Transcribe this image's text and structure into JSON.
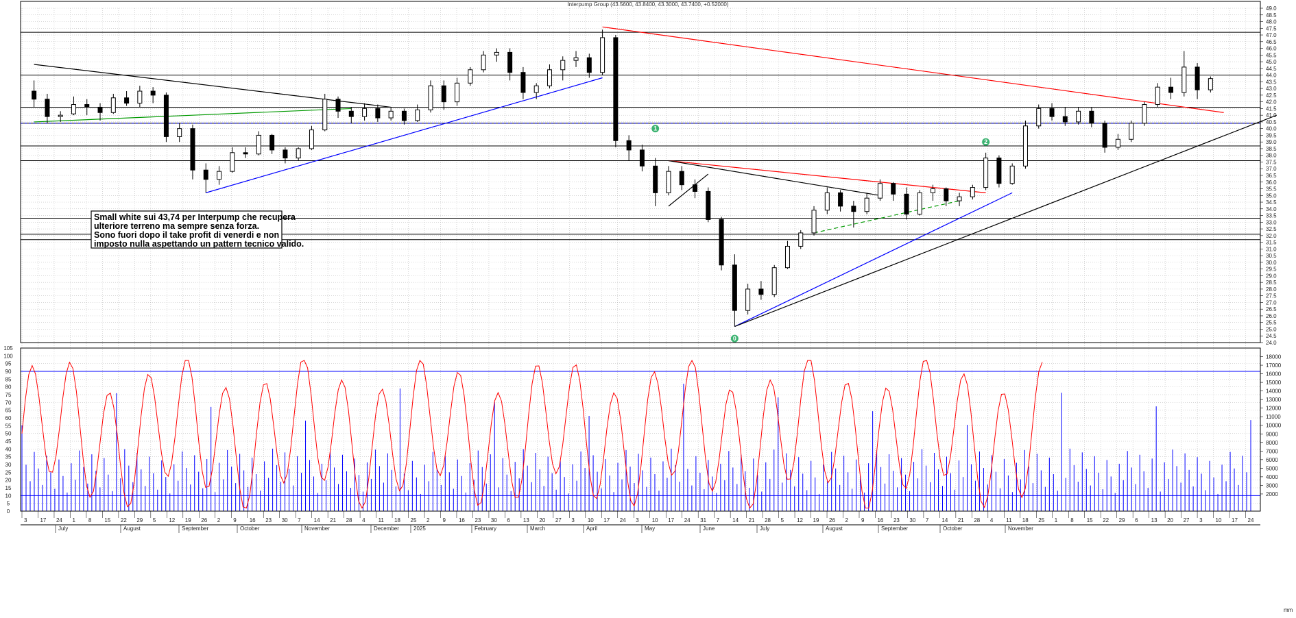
{
  "chart_data": {
    "type": "candlestick",
    "title": "Interpump Group (43.5600, 43.8400, 43.3000, 43.7400, +0.52000)",
    "price_axis": {
      "range": [
        24.0,
        49.0
      ],
      "tick_labels": [
        "24.0",
        "24.5",
        "25.0",
        "25.5",
        "26.0",
        "26.5",
        "27.0",
        "27.5",
        "28.0",
        "28.5",
        "29.0",
        "29.5",
        "30.0",
        "30.5",
        "31.0",
        "31.5",
        "32.0",
        "32.5",
        "33.0",
        "33.5",
        "34.0",
        "34.5",
        "35.0",
        "35.5",
        "36.0",
        "36.5",
        "37.0",
        "37.5",
        "38.0",
        "38.5",
        "39.0",
        "39.5",
        "40.0",
        "40.5",
        "41.0",
        "41.5",
        "42.0",
        "42.5",
        "43.0",
        "43.5",
        "44.0",
        "44.5",
        "45.0",
        "45.5",
        "46.0",
        "46.5",
        "47.0",
        "47.5",
        "48.0",
        "48.5",
        "49.0"
      ]
    },
    "oscillator_axis": {
      "range": [
        0,
        105
      ],
      "tick_labels": [
        "0",
        "5",
        "10",
        "15",
        "20",
        "25",
        "30",
        "35",
        "40",
        "45",
        "50",
        "55",
        "60",
        "65",
        "70",
        "75",
        "80",
        "85",
        "90",
        "95",
        "100",
        "105"
      ],
      "levels": [
        10,
        90
      ]
    },
    "volume_axis": {
      "range": [
        0,
        19000
      ],
      "tick_labels": [
        "2000",
        "3000",
        "4000",
        "5000",
        "6000",
        "7000",
        "8000",
        "9000",
        "10000",
        "11000",
        "12000",
        "13000",
        "14000",
        "15000",
        "16000",
        "17000",
        "18000"
      ]
    },
    "x_axis": {
      "day_ticks": [
        "3",
        "17",
        "24",
        "1",
        "8",
        "15",
        "22",
        "29",
        "5",
        "12",
        "19",
        "26",
        "2",
        "9",
        "16",
        "23",
        "30",
        "7",
        "14",
        "21",
        "28",
        "4",
        "11",
        "18",
        "25",
        "2",
        "9",
        "16",
        "23",
        "30",
        "6",
        "13",
        "20",
        "27",
        "3",
        "10",
        "17",
        "24",
        "3",
        "10",
        "17",
        "24",
        "31",
        "7",
        "14",
        "21",
        "28",
        "5",
        "12",
        "19",
        "26",
        "2",
        "9",
        "16",
        "23",
        "30",
        "7",
        "14",
        "21",
        "28",
        "4",
        "11",
        "18",
        "25",
        "1",
        "8",
        "15",
        "22",
        "29",
        "6",
        "13",
        "20",
        "27",
        "3",
        "10",
        "17",
        "24"
      ],
      "month_labels": [
        "July",
        "August",
        "September",
        "October",
        "November",
        "December",
        "2025",
        "February",
        "March",
        "April",
        "May",
        "June",
        "July",
        "August",
        "September",
        "October",
        "November"
      ]
    },
    "candles_ohlc_sample": [
      [
        42.8,
        43.6,
        41.6,
        42.2
      ],
      [
        42.2,
        42.6,
        40.4,
        40.9
      ],
      [
        40.9,
        41.3,
        40.5,
        41.0
      ],
      [
        41.1,
        42.4,
        41.0,
        41.8
      ],
      [
        41.8,
        42.2,
        41.0,
        41.6
      ],
      [
        41.6,
        41.9,
        40.6,
        41.2
      ],
      [
        41.2,
        42.6,
        41.1,
        42.3
      ],
      [
        42.3,
        42.8,
        41.7,
        41.9
      ],
      [
        41.9,
        43.2,
        41.6,
        42.8
      ],
      [
        42.8,
        43.1,
        41.9,
        42.5
      ],
      [
        42.5,
        42.7,
        39.0,
        39.4
      ],
      [
        39.4,
        40.4,
        39.0,
        40.0
      ],
      [
        40.0,
        40.3,
        36.2,
        36.9
      ],
      [
        36.9,
        37.4,
        35.2,
        36.2
      ],
      [
        36.2,
        37.2,
        35.8,
        36.8
      ],
      [
        36.8,
        38.6,
        36.7,
        38.2
      ],
      [
        38.2,
        38.6,
        37.8,
        38.1
      ],
      [
        38.1,
        39.8,
        38.0,
        39.5
      ],
      [
        39.5,
        39.6,
        38.1,
        38.4
      ],
      [
        38.4,
        38.6,
        37.4,
        37.8
      ],
      [
        37.8,
        38.6,
        37.6,
        38.5
      ],
      [
        38.5,
        40.2,
        38.4,
        39.9
      ],
      [
        39.9,
        42.6,
        39.8,
        42.2
      ],
      [
        42.2,
        42.4,
        40.8,
        41.3
      ],
      [
        41.3,
        41.6,
        40.4,
        40.9
      ],
      [
        40.9,
        41.9,
        40.6,
        41.5
      ],
      [
        41.5,
        41.8,
        40.5,
        40.8
      ],
      [
        40.8,
        41.6,
        40.6,
        41.3
      ],
      [
        41.3,
        41.5,
        40.3,
        40.6
      ],
      [
        40.6,
        41.8,
        40.5,
        41.4
      ],
      [
        41.4,
        43.6,
        41.2,
        43.2
      ],
      [
        43.2,
        43.6,
        41.4,
        42.0
      ],
      [
        42.0,
        43.8,
        41.7,
        43.4
      ],
      [
        43.4,
        44.6,
        43.2,
        44.4
      ],
      [
        44.4,
        45.8,
        44.2,
        45.5
      ],
      [
        45.5,
        46.0,
        45.0,
        45.7
      ],
      [
        45.7,
        46.0,
        43.6,
        44.2
      ],
      [
        44.2,
        44.6,
        42.2,
        42.7
      ],
      [
        42.7,
        43.4,
        42.2,
        43.2
      ],
      [
        43.2,
        44.8,
        43.0,
        44.4
      ],
      [
        44.4,
        45.4,
        43.6,
        45.1
      ],
      [
        45.1,
        45.8,
        44.6,
        45.3
      ],
      [
        45.3,
        45.6,
        43.8,
        44.2
      ],
      [
        44.2,
        47.4,
        44.0,
        46.8
      ],
      [
        46.8,
        47.0,
        38.6,
        39.1
      ],
      [
        39.1,
        39.5,
        37.6,
        38.4
      ],
      [
        38.4,
        38.8,
        36.8,
        37.2
      ],
      [
        37.2,
        37.8,
        34.2,
        35.2
      ],
      [
        35.2,
        37.2,
        35.0,
        36.8
      ],
      [
        36.8,
        37.2,
        35.4,
        35.8
      ],
      [
        35.8,
        36.2,
        34.8,
        35.3
      ],
      [
        35.3,
        35.6,
        33.0,
        33.2
      ],
      [
        33.2,
        33.4,
        29.4,
        29.8
      ],
      [
        29.8,
        30.6,
        25.2,
        26.4
      ],
      [
        26.4,
        28.4,
        26.1,
        28.0
      ],
      [
        28.0,
        28.6,
        27.2,
        27.6
      ],
      [
        27.6,
        29.8,
        27.4,
        29.6
      ],
      [
        29.6,
        31.6,
        29.5,
        31.2
      ],
      [
        31.2,
        32.4,
        31.0,
        32.2
      ],
      [
        32.2,
        34.2,
        32.0,
        33.9
      ],
      [
        33.9,
        35.6,
        33.6,
        35.2
      ],
      [
        35.2,
        35.4,
        33.8,
        34.2
      ],
      [
        34.2,
        34.6,
        32.6,
        33.8
      ],
      [
        33.8,
        35.2,
        33.6,
        34.8
      ],
      [
        34.8,
        36.2,
        34.6,
        35.9
      ],
      [
        35.9,
        36.0,
        34.6,
        35.1
      ],
      [
        35.1,
        35.6,
        33.2,
        33.6
      ],
      [
        33.6,
        35.4,
        33.5,
        35.2
      ],
      [
        35.2,
        35.8,
        34.6,
        35.5
      ],
      [
        35.5,
        35.6,
        34.2,
        34.6
      ],
      [
        34.6,
        35.2,
        34.2,
        34.9
      ],
      [
        34.9,
        35.8,
        34.7,
        35.6
      ],
      [
        35.6,
        38.2,
        35.4,
        37.8
      ],
      [
        37.8,
        38.0,
        35.6,
        35.9
      ],
      [
        35.9,
        37.4,
        35.8,
        37.2
      ],
      [
        37.2,
        40.6,
        37.0,
        40.2
      ],
      [
        40.2,
        41.8,
        40.0,
        41.5
      ],
      [
        41.5,
        41.9,
        40.6,
        40.9
      ],
      [
        40.9,
        41.6,
        40.2,
        40.5
      ],
      [
        40.5,
        41.6,
        40.3,
        41.3
      ],
      [
        41.3,
        41.6,
        40.1,
        40.4
      ],
      [
        40.4,
        40.6,
        38.2,
        38.6
      ],
      [
        38.6,
        39.6,
        38.4,
        39.2
      ],
      [
        39.2,
        40.6,
        39.0,
        40.4
      ],
      [
        40.4,
        42.0,
        40.2,
        41.8
      ],
      [
        41.8,
        43.4,
        41.6,
        43.1
      ],
      [
        43.1,
        43.8,
        42.2,
        42.7
      ],
      [
        42.7,
        45.8,
        42.4,
        44.6
      ],
      [
        44.6,
        44.9,
        42.2,
        42.9
      ],
      [
        42.9,
        43.9,
        42.7,
        43.74
      ]
    ],
    "horizontal_levels": [
      47.2,
      44.0,
      41.6,
      40.4,
      38.7,
      37.6,
      33.3,
      32.1,
      31.7,
      24.0
    ],
    "support_level_dashed": 40.4,
    "volume_max": 17900,
    "annotations": {
      "text_box": [
        "Small white sui 43,74 per Interpump che recupera",
        "ulteriore terreno ma sempre senza forza.",
        "Sono fuori dopo il take profit di venerdi e non",
        "imposto nulla aspettando un pattern tecnico valido."
      ],
      "markers": [
        "0",
        "1",
        "2"
      ]
    },
    "corner_label": "mm"
  },
  "colors": {
    "candle": "#000000",
    "trend_red": "#ff0000",
    "trend_blue": "#0000ff",
    "trend_green": "#009900",
    "oscillator": "#ff0000",
    "volume": "#0000ff",
    "level_line": "#000000",
    "marker": "#3cb371",
    "grid": "#b0b0b0"
  }
}
